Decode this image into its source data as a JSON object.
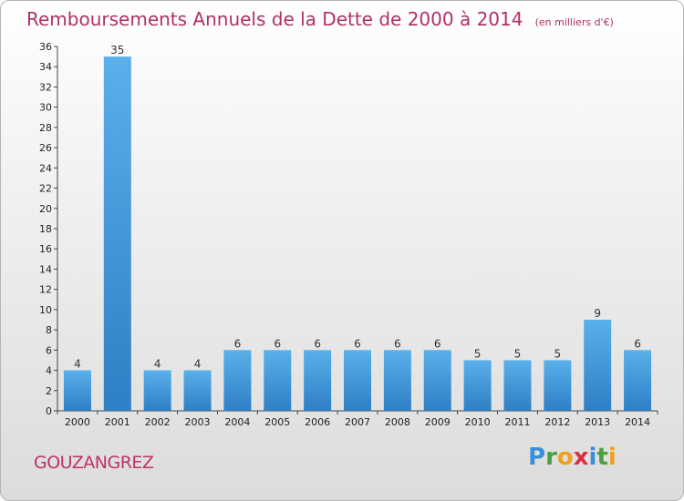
{
  "title": "Remboursements Annuels de la Dette de 2000 à 2014",
  "unit": "(en milliers d'€)",
  "town": "GOUZANGREZ",
  "logo": "Proxiti",
  "colors": {
    "bar_top": "#5ab0ea",
    "bar_bottom": "#2e7fc4",
    "title": "#b0306a"
  },
  "chart_data": {
    "type": "bar",
    "title": "Remboursements Annuels de la Dette de 2000 à 2014",
    "subtitle": "(en milliers d'€)",
    "categories": [
      "2000",
      "2001",
      "2002",
      "2003",
      "2004",
      "2005",
      "2006",
      "2007",
      "2008",
      "2009",
      "2010",
      "2011",
      "2012",
      "2013",
      "2014"
    ],
    "values": [
      4,
      35,
      4,
      4,
      6,
      6,
      6,
      6,
      6,
      6,
      5,
      5,
      5,
      9,
      6
    ],
    "ylim": [
      0,
      36
    ],
    "yticks": [
      0,
      2,
      4,
      6,
      8,
      10,
      12,
      14,
      16,
      18,
      20,
      22,
      24,
      26,
      28,
      30,
      32,
      34,
      36
    ],
    "grid": false,
    "xlabel": "",
    "ylabel": ""
  }
}
